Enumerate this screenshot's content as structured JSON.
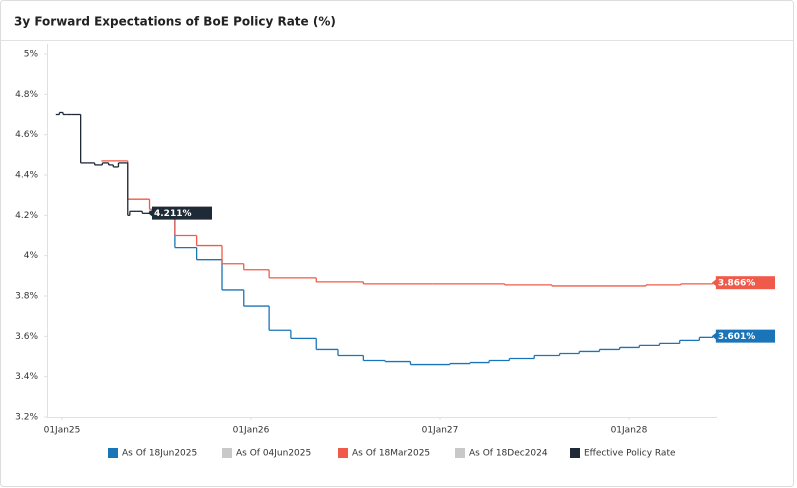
{
  "chart_data": {
    "type": "line",
    "title": "3y Forward Expectations of BoE Policy Rate (%)",
    "xlim": [
      "2024-12-03",
      "2028-06-19"
    ],
    "xticks": [
      {
        "value": "2025-01-01",
        "label": "01Jan25"
      },
      {
        "value": "2026-01-01",
        "label": "01Jan26"
      },
      {
        "value": "2027-01-01",
        "label": "01Jan27"
      },
      {
        "value": "2028-01-01",
        "label": "01Jan28"
      }
    ],
    "ylim": [
      3.2,
      5
    ],
    "yticks": [
      {
        "value": 3.2,
        "label": "3.2%"
      },
      {
        "value": 3.4,
        "label": "3.4%"
      },
      {
        "value": 3.6,
        "label": "3.6%"
      },
      {
        "value": 3.8,
        "label": "3.8%"
      },
      {
        "value": 4,
        "label": "4%"
      },
      {
        "value": 4.2,
        "label": "4.2%"
      },
      {
        "value": 4.4,
        "label": "4.4%"
      },
      {
        "value": 4.6,
        "label": "4.6%"
      },
      {
        "value": 4.8,
        "label": "4.8%"
      },
      {
        "value": 5,
        "label": "5%"
      }
    ],
    "grid": false,
    "legend": "bottom",
    "series": [
      {
        "name": "As Of 18Jun2025",
        "color": "#1a75b8",
        "visible": true,
        "x": [
          "2025-06-18",
          "2025-08-07",
          "2025-09-18",
          "2025-11-06",
          "2025-12-18",
          "2026-02-05",
          "2026-03-19",
          "2026-05-07",
          "2026-06-18",
          "2026-08-06",
          "2026-09-17",
          "2026-11-05",
          "2027-01-20",
          "2027-02-28",
          "2027-04-06",
          "2027-05-15",
          "2027-07-02",
          "2027-08-20",
          "2027-09-27",
          "2027-11-05",
          "2027-12-14",
          "2028-01-21",
          "2028-02-29",
          "2028-04-08",
          "2028-05-16",
          "2028-06-11"
        ],
        "values": [
          4.22,
          4.04,
          3.98,
          3.83,
          3.75,
          3.63,
          3.59,
          3.535,
          3.505,
          3.48,
          3.475,
          3.46,
          3.465,
          3.47,
          3.48,
          3.49,
          3.505,
          3.515,
          3.525,
          3.535,
          3.545,
          3.555,
          3.565,
          3.58,
          3.595,
          3.601
        ],
        "value_labels": [
          null,
          null,
          null,
          null,
          null,
          null,
          null,
          null,
          null,
          null,
          null,
          null,
          null,
          null,
          null,
          null,
          null,
          null,
          null,
          null,
          null,
          null,
          null,
          null,
          null,
          "3.601%"
        ]
      },
      {
        "name": "As Of 04Jun2025",
        "color": "#c8c8c8",
        "visible": false
      },
      {
        "name": "As Of 18Mar2025",
        "color": "#f05a4a",
        "visible": true,
        "x": [
          "2025-03-18",
          "2025-05-08",
          "2025-06-19",
          "2025-08-07",
          "2025-09-18",
          "2025-11-06",
          "2025-12-18",
          "2026-02-05",
          "2026-05-07",
          "2026-08-06",
          "2026-12-17",
          "2027-05-06",
          "2027-08-05",
          "2027-11-04",
          "2028-02-03",
          "2028-04-10",
          "2028-06-11"
        ],
        "values": [
          4.47,
          4.28,
          4.23,
          4.1,
          4.05,
          3.96,
          3.93,
          3.89,
          3.87,
          3.86,
          3.86,
          3.855,
          3.85,
          3.85,
          3.855,
          3.86,
          3.866
        ],
        "value_labels": [
          null,
          null,
          null,
          null,
          null,
          null,
          null,
          null,
          null,
          null,
          null,
          null,
          null,
          null,
          null,
          null,
          "3.866%"
        ]
      },
      {
        "name": "As Of 18Dec2024",
        "color": "#c8c8c8",
        "visible": false
      },
      {
        "name": "Effective Policy Rate",
        "color": "#1e2a36",
        "visible": true,
        "x": [
          "2024-12-20",
          "2024-12-27",
          "2025-01-03",
          "2025-01-10",
          "2025-01-20",
          "2025-02-06",
          "2025-02-20",
          "2025-03-05",
          "2025-03-20",
          "2025-04-01",
          "2025-04-10",
          "2025-04-20",
          "2025-05-08",
          "2025-05-12",
          "2025-05-25",
          "2025-06-05",
          "2025-06-18"
        ],
        "values": [
          4.7,
          4.71,
          4.7,
          4.7,
          4.7,
          4.46,
          4.46,
          4.45,
          4.46,
          4.45,
          4.44,
          4.46,
          4.2,
          4.22,
          4.22,
          4.21,
          4.211
        ],
        "value_labels": [
          null,
          null,
          null,
          null,
          null,
          null,
          null,
          null,
          null,
          null,
          null,
          null,
          null,
          null,
          null,
          null,
          "4.211%"
        ]
      }
    ]
  }
}
